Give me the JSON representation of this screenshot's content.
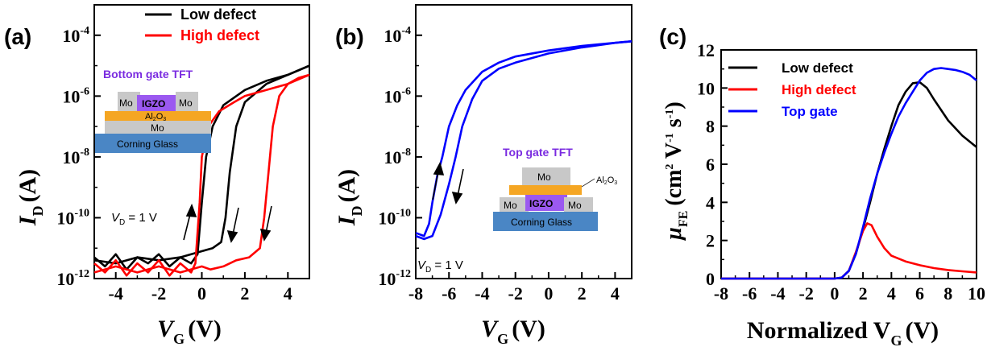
{
  "panels": [
    {
      "label": "(a)",
      "legend": [
        {
          "name": "Low defect",
          "color": "#000000"
        },
        {
          "name": "High defect",
          "color": "#ff0000"
        }
      ],
      "xlabel": "V",
      "xlabel_sub": "G",
      "xlabel_unit": "(V)",
      "ylabel": "I",
      "ylabel_sub": "D",
      "ylabel_unit": "(A)",
      "annotation": "V",
      "annotation_sub": "D",
      "annotation_rest": " = 1 V",
      "inset": {
        "title": "Bottom gate TFT",
        "layers": [
          "Mo",
          "IGZO",
          "Mo",
          "Al",
          "2",
          "O",
          "3",
          "Mo",
          "Corning Glass"
        ]
      }
    },
    {
      "label": "(b)",
      "xlabel": "V",
      "xlabel_sub": "G",
      "xlabel_unit": "(V)",
      "ylabel": "I",
      "ylabel_sub": "D",
      "ylabel_unit": "(A)",
      "annotation": "V",
      "annotation_sub": "D",
      "annotation_rest": " = 1 V",
      "inset": {
        "title": "Top gate TFT",
        "layers": [
          "Mo",
          "Al",
          "2",
          "O",
          "3",
          "Mo",
          "IGZO",
          "Mo",
          "Corning Glass"
        ]
      }
    },
    {
      "label": "(c)",
      "legend": [
        {
          "name": "Low defect",
          "color": "#000000"
        },
        {
          "name": "High defect",
          "color": "#ff0000"
        },
        {
          "name": "Top gate",
          "color": "#0000ff"
        }
      ],
      "xlabel": "Normalized V",
      "xlabel_sub": "G",
      "xlabel_unit": "(V)",
      "ylabel": "μ",
      "ylabel_sub": "FE",
      "ylabel_unit_parts": [
        "(cm",
        "2",
        " V",
        "-1",
        " s",
        "-1",
        ")"
      ]
    }
  ],
  "chart_data": [
    {
      "type": "line",
      "log_y": true,
      "xlim": [
        -5,
        5
      ],
      "ylim_exponent": [
        -12,
        -3
      ],
      "x_ticks": [
        "-4",
        "-2",
        "0",
        "2",
        "4"
      ],
      "x_tick_values": [
        -4,
        -2,
        0,
        2,
        4
      ],
      "y_ticks": [
        {
          "base": "10",
          "exp": "-12",
          "v": -12
        },
        {
          "base": "10",
          "exp": "-10",
          "v": -10
        },
        {
          "base": "10",
          "exp": "-8",
          "v": -8
        },
        {
          "base": "10",
          "exp": "-6",
          "v": -6
        },
        {
          "base": "10",
          "exp": "-4",
          "v": -4
        }
      ],
      "series": [
        {
          "name": "Low defect",
          "color": "#000000",
          "points": [
            [
              -5,
              -11.3
            ],
            [
              -4.5,
              -11.6
            ],
            [
              -4,
              -11.2
            ],
            [
              -3.5,
              -11.7
            ],
            [
              -3,
              -11.3
            ],
            [
              -2.5,
              -11.5
            ],
            [
              -2,
              -11.2
            ],
            [
              -1.5,
              -11.6
            ],
            [
              -1,
              -11.3
            ],
            [
              -0.5,
              -11.5
            ],
            [
              -0.2,
              -11.2
            ],
            [
              0,
              -9.5
            ],
            [
              0.2,
              -8
            ],
            [
              0.5,
              -7
            ],
            [
              1,
              -6.3
            ],
            [
              2,
              -5.8
            ],
            [
              3,
              -5.5
            ],
            [
              4,
              -5.3
            ],
            [
              5,
              -5.0
            ]
          ]
        },
        {
          "name": "Low defect",
          "color": "#000000",
          "points": [
            [
              5,
              -5.0
            ],
            [
              4,
              -5.3
            ],
            [
              3,
              -5.6
            ],
            [
              2,
              -6.2
            ],
            [
              1.6,
              -7
            ],
            [
              1.3,
              -8.5
            ],
            [
              1.1,
              -10
            ],
            [
              0.9,
              -10.8
            ],
            [
              0.5,
              -11.0
            ],
            [
              0,
              -11.1
            ],
            [
              -1,
              -11.3
            ],
            [
              -2,
              -11.4
            ],
            [
              -3,
              -11.3
            ],
            [
              -4,
              -11.5
            ],
            [
              -5,
              -11.4
            ]
          ]
        },
        {
          "name": "High defect",
          "color": "#ff0000",
          "points": [
            [
              -5,
              -11.5
            ],
            [
              -4.5,
              -11.8
            ],
            [
              -4,
              -11.4
            ],
            [
              -3.5,
              -11.9
            ],
            [
              -3,
              -11.5
            ],
            [
              -2.5,
              -11.8
            ],
            [
              -2,
              -11.4
            ],
            [
              -1.5,
              -11.9
            ],
            [
              -1,
              -11.5
            ],
            [
              -0.5,
              -11.8
            ],
            [
              -0.3,
              -11.5
            ],
            [
              -0.1,
              -9.5
            ],
            [
              0,
              -8
            ],
            [
              0.3,
              -7
            ],
            [
              0.8,
              -6.5
            ],
            [
              1.5,
              -6.2
            ],
            [
              2,
              -6
            ],
            [
              3,
              -5.8
            ],
            [
              4,
              -5.6
            ],
            [
              5,
              -5.3
            ]
          ]
        },
        {
          "name": "High defect",
          "color": "#ff0000",
          "points": [
            [
              5,
              -5.3
            ],
            [
              4.5,
              -5.4
            ],
            [
              4,
              -5.6
            ],
            [
              3.6,
              -6
            ],
            [
              3.3,
              -7
            ],
            [
              3.1,
              -8.5
            ],
            [
              2.9,
              -10
            ],
            [
              2.7,
              -11
            ],
            [
              2.2,
              -11.3
            ],
            [
              1.6,
              -11.4
            ],
            [
              1,
              -11.6
            ],
            [
              0.4,
              -11.7
            ],
            [
              0,
              -11.6
            ],
            [
              -1,
              -11.8
            ],
            [
              -2,
              -11.6
            ],
            [
              -3,
              -11.8
            ],
            [
              -4,
              -11.6
            ],
            [
              -5,
              -11.8
            ]
          ]
        }
      ]
    },
    {
      "type": "line",
      "log_y": true,
      "xlim": [
        -8,
        5
      ],
      "ylim_exponent": [
        -12,
        -3
      ],
      "x_ticks": [
        "-8",
        "-6",
        "-4",
        "-2",
        "0",
        "2",
        "4"
      ],
      "x_tick_values": [
        -8,
        -6,
        -4,
        -2,
        0,
        2,
        4
      ],
      "y_ticks": [
        {
          "base": "10",
          "exp": "-12",
          "v": -12
        },
        {
          "base": "10",
          "exp": "-10",
          "v": -10
        },
        {
          "base": "10",
          "exp": "-8",
          "v": -8
        },
        {
          "base": "10",
          "exp": "-6",
          "v": -6
        },
        {
          "base": "10",
          "exp": "-4",
          "v": -4
        }
      ],
      "series": [
        {
          "name": "Top gate",
          "color": "#0000ff",
          "points": [
            [
              -8,
              -10.5
            ],
            [
              -7.5,
              -10.6
            ],
            [
              -7.2,
              -10.2
            ],
            [
              -7,
              -9.5
            ],
            [
              -6.7,
              -8.6
            ],
            [
              -6.4,
              -8
            ],
            [
              -6,
              -7
            ],
            [
              -5.5,
              -6.3
            ],
            [
              -5,
              -5.8
            ],
            [
              -4,
              -5.2
            ],
            [
              -3,
              -4.9
            ],
            [
              -2,
              -4.7
            ],
            [
              0,
              -4.5
            ],
            [
              2,
              -4.35
            ],
            [
              4,
              -4.25
            ],
            [
              5,
              -4.2
            ]
          ]
        },
        {
          "name": "Top gate",
          "color": "#0000ff",
          "points": [
            [
              5,
              -4.2
            ],
            [
              4,
              -4.25
            ],
            [
              2,
              -4.4
            ],
            [
              0,
              -4.6
            ],
            [
              -2,
              -4.9
            ],
            [
              -3,
              -5.1
            ],
            [
              -4,
              -5.5
            ],
            [
              -4.6,
              -6.1
            ],
            [
              -5.2,
              -7
            ],
            [
              -5.6,
              -8
            ],
            [
              -6,
              -8.9
            ],
            [
              -6.5,
              -9.9
            ],
            [
              -7,
              -10.6
            ],
            [
              -7.5,
              -10.7
            ],
            [
              -8,
              -10.6
            ]
          ]
        }
      ]
    },
    {
      "type": "line",
      "log_y": false,
      "xlim": [
        -8,
        10
      ],
      "ylim": [
        0,
        12
      ],
      "x_ticks": [
        "-8",
        "-6",
        "-4",
        "-2",
        "0",
        "2",
        "4",
        "6",
        "8",
        "10"
      ],
      "x_tick_values": [
        -8,
        -6,
        -4,
        -2,
        0,
        2,
        4,
        6,
        8,
        10
      ],
      "y_ticks": [
        "0",
        "2",
        "4",
        "6",
        "8",
        "10",
        "12"
      ],
      "y_tick_values": [
        0,
        2,
        4,
        6,
        8,
        10,
        12
      ],
      "series": [
        {
          "name": "Low defect",
          "color": "#000000",
          "points": [
            [
              -8,
              0
            ],
            [
              -1,
              0
            ],
            [
              0,
              0
            ],
            [
              0.5,
              0.05
            ],
            [
              1,
              0.4
            ],
            [
              1.5,
              1.3
            ],
            [
              2,
              2.6
            ],
            [
              2.5,
              4
            ],
            [
              3,
              5.5
            ],
            [
              3.5,
              6.8
            ],
            [
              4,
              8
            ],
            [
              4.5,
              9.1
            ],
            [
              5,
              9.8
            ],
            [
              5.5,
              10.25
            ],
            [
              6,
              10.3
            ],
            [
              6.5,
              10
            ],
            [
              7,
              9.4
            ],
            [
              8,
              8.3
            ],
            [
              9,
              7.5
            ],
            [
              10,
              6.9
            ]
          ]
        },
        {
          "name": "High defect",
          "color": "#ff0000",
          "points": [
            [
              -8,
              0
            ],
            [
              -1,
              0
            ],
            [
              0,
              0
            ],
            [
              0.5,
              0.05
            ],
            [
              1,
              0.4
            ],
            [
              1.5,
              1.4
            ],
            [
              2,
              2.5
            ],
            [
              2.3,
              2.9
            ],
            [
              2.6,
              2.8
            ],
            [
              3,
              2.2
            ],
            [
              3.5,
              1.6
            ],
            [
              4,
              1.2
            ],
            [
              5,
              0.9
            ],
            [
              6,
              0.7
            ],
            [
              7,
              0.55
            ],
            [
              8,
              0.45
            ],
            [
              9,
              0.38
            ],
            [
              10,
              0.32
            ]
          ]
        },
        {
          "name": "Top gate",
          "color": "#0000ff",
          "points": [
            [
              -8,
              0
            ],
            [
              -1,
              0
            ],
            [
              0,
              0
            ],
            [
              0.5,
              0.05
            ],
            [
              1,
              0.4
            ],
            [
              1.5,
              1.3
            ],
            [
              2,
              2.7
            ],
            [
              2.5,
              4.2
            ],
            [
              3,
              5.5
            ],
            [
              3.5,
              6.6
            ],
            [
              4,
              7.6
            ],
            [
              4.5,
              8.5
            ],
            [
              5,
              9.2
            ],
            [
              5.5,
              9.8
            ],
            [
              6,
              10.4
            ],
            [
              6.5,
              10.8
            ],
            [
              7,
              11
            ],
            [
              7.5,
              11.05
            ],
            [
              8,
              11
            ],
            [
              8.5,
              10.95
            ],
            [
              9,
              10.85
            ],
            [
              9.5,
              10.7
            ],
            [
              10,
              10.4
            ]
          ]
        }
      ]
    }
  ]
}
